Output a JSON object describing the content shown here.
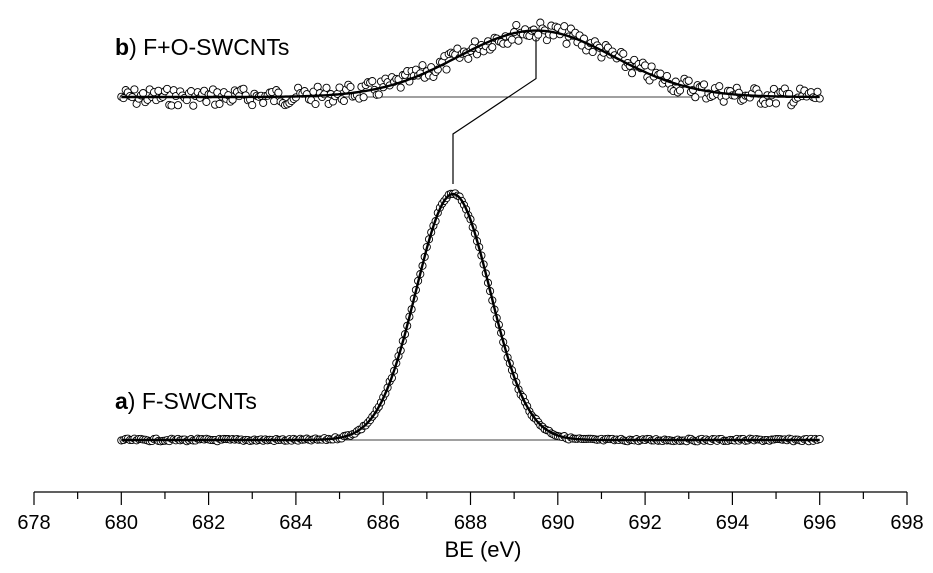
{
  "chart_data": {
    "type": "scatter",
    "xlabel": "BE (eV)",
    "xlim": [
      678,
      698
    ],
    "x_major_ticks": [
      678,
      680,
      682,
      684,
      686,
      688,
      690,
      692,
      694,
      696,
      698
    ],
    "x_minor_step": 1,
    "series": [
      {
        "key": "b",
        "name": "F+O-SWCNTs",
        "peak_position": 689.5,
        "fwhm": 4.2,
        "relative_peak_height": 0.27,
        "markers": "open circles",
        "fit": "solid line",
        "x_range": [
          680,
          696
        ]
      },
      {
        "key": "a",
        "name": "F-SWCNTs",
        "peak_position": 687.6,
        "fwhm": 2.0,
        "relative_peak_height": 1.0,
        "markers": "open circles",
        "fit": "solid line",
        "x_range": [
          680,
          696
        ]
      }
    ],
    "annotations": [
      {
        "type": "connector",
        "from_series": "a",
        "to_series": "b",
        "meaning": "peak shift"
      }
    ],
    "grid": false,
    "legend": "none",
    "colors": {
      "markers": "#000000",
      "fit": "#000000",
      "baseline": "#000000"
    }
  },
  "labels": {
    "a": {
      "key": "a",
      "text": ") F-SWCNTs"
    },
    "b": {
      "key": "b",
      "text": ") F+O-SWCNTs"
    }
  }
}
